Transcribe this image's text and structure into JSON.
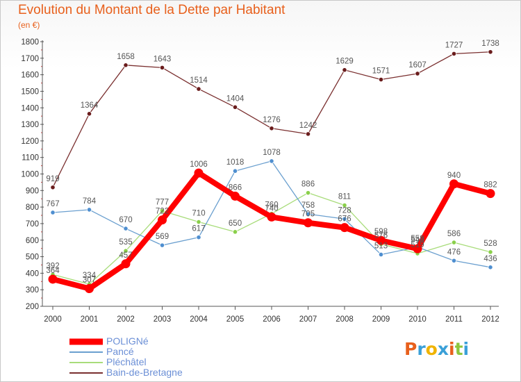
{
  "header": {
    "title": "Evolution du Montant de la Dette par Habitant",
    "subtitle": "(en €)"
  },
  "brand": {
    "text": "Proxiti",
    "colors": [
      "#e8601c",
      "#3aa0d8",
      "#f0b400",
      "#3aa0d8",
      "#e8601c",
      "#8dc63f",
      "#3aa0d8"
    ]
  },
  "chart_data": {
    "type": "line",
    "title": "Evolution du Montant de la Dette par Habitant",
    "subtitle": "(en €)",
    "xlabel": "",
    "ylabel": "",
    "x": [
      "2000",
      "2001",
      "2002",
      "2003",
      "2004",
      "2005",
      "2006",
      "2007",
      "2008",
      "2009",
      "2010",
      "2011",
      "2012"
    ],
    "ylim": [
      200,
      1800
    ],
    "yticks": [
      200,
      300,
      400,
      500,
      600,
      700,
      800,
      900,
      1000,
      1100,
      1200,
      1300,
      1400,
      1500,
      1600,
      1700,
      1800
    ],
    "grid": false,
    "legend_position": "bottom-left",
    "series": [
      {
        "name": "POLIGNé",
        "color": "#ff0000",
        "marker_color": "#ff0000",
        "emphasis": true,
        "values": [
          364,
          307,
          457,
          722,
          1006,
          866,
          740,
          705,
          676,
          598,
          548,
          940,
          882
        ]
      },
      {
        "name": "Pancé",
        "color": "#6a9fcf",
        "marker_color": "#4f8fd0",
        "values": [
          767,
          784,
          670,
          569,
          617,
          1018,
          1078,
          758,
          728,
          513,
          558,
          476,
          436
        ]
      },
      {
        "name": "Pléchâtel",
        "color": "#a8dc7a",
        "marker_color": "#8ad04a",
        "values": [
          392,
          334,
          535,
          777,
          710,
          650,
          760,
          886,
          811,
          576,
          519,
          586,
          528
        ]
      },
      {
        "name": "Bain-de-Bretagne",
        "color": "#7a2f2f",
        "marker_color": "#6a1c1c",
        "values": [
          919,
          1364,
          1658,
          1643,
          1514,
          1404,
          1276,
          1242,
          1629,
          1571,
          1607,
          1727,
          1738
        ]
      }
    ]
  }
}
